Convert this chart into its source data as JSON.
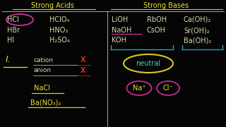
{
  "background_color": "#050505",
  "divider_color": "#aaaaaa",
  "strong_acids_title": "Strong Acids",
  "strong_bases_title": "Strong Bases",
  "acids_col1": [
    "HCl",
    "HBr",
    "HI"
  ],
  "acids_col2": [
    "HClO₄",
    "HNO₃",
    "H₂SO₄"
  ],
  "bases_col1": [
    "LiOH",
    "NaOH",
    "KOH"
  ],
  "bases_col2": [
    "RbOH",
    "CsOH"
  ],
  "bases_col3": [
    "Ca(OH)₂",
    "Sr(OH)₂",
    "Ba(OH)₂"
  ],
  "roman_one": "I.",
  "cation_label": "cation",
  "anion_label": "anion",
  "neutral_label": "neutral",
  "nacl_label": "NaCl",
  "ba_label": "Ba(NO₃)₂",
  "na_plus": "Na⁺",
  "cl_minus": "Cl⁻",
  "text_yellow": "#e8e030",
  "text_white": "#d8d8b0",
  "text_cyan": "#30d8c8",
  "text_magenta": "#d030a0",
  "hcl_circle_color": "#d030a0",
  "neutral_oval_color": "#d8c820",
  "na_circle_color": "#c82898",
  "cl_circle_color": "#c82898",
  "bracket_color": "#20a0c8",
  "x_color": "#d03020",
  "nacl_underline": "#d8c820",
  "ba_underline": "#d8c820",
  "header_underline": "#d8c820",
  "naoh_underline": "#c82898"
}
